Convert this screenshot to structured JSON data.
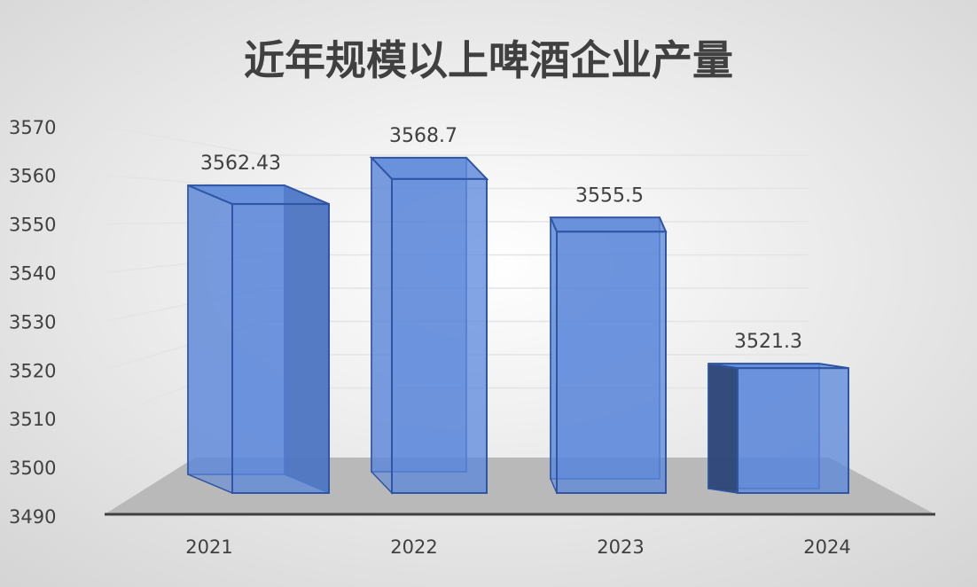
{
  "chart_data": {
    "type": "bar",
    "style": "3d-column",
    "title": "近年规模以上啤酒企业产量",
    "categories": [
      "2021",
      "2022",
      "2023",
      "2024"
    ],
    "values": [
      3562.43,
      3568.7,
      3555.5,
      3521.3
    ],
    "data_labels": [
      "3562.43",
      "3568.7",
      "3555.5",
      "3521.3"
    ],
    "ylim": [
      3490,
      3570
    ],
    "yticks": [
      3490,
      3500,
      3510,
      3520,
      3530,
      3540,
      3550,
      3560,
      3570
    ],
    "grid": true,
    "legend": "none",
    "colors": {
      "bar": "#5b87d9",
      "bar_edge": "#2f55a4",
      "bar_side": "#2d4776",
      "floor": "#b9b9b9",
      "text": "#404040"
    }
  }
}
